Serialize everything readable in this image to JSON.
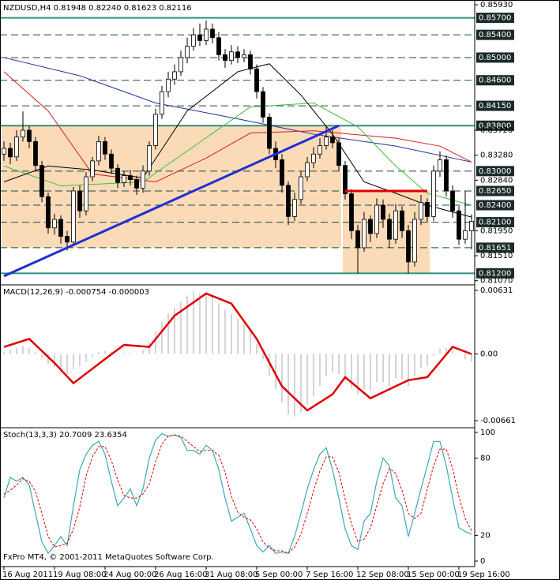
{
  "chart_data": [
    {
      "type": "candlestick",
      "title": "NZDUSD,H4 0.81948 0.82240 0.81623 0.82116",
      "categories": [
        "16 Aug 2011",
        null,
        null,
        null,
        null,
        null,
        null,
        null,
        "19 Aug 08:00",
        null,
        null,
        null,
        null,
        null,
        null,
        null,
        "24 Aug 00:00",
        null,
        null,
        null,
        null,
        null,
        null,
        null,
        "26 Aug 16:00",
        null,
        null,
        null,
        null,
        null,
        null,
        null,
        "31 Aug 08:00",
        null,
        null,
        null,
        null,
        null,
        null,
        null,
        "5 Sep 00:00",
        null,
        null,
        null,
        null,
        null,
        null,
        null,
        "7 Sep 16:00",
        null,
        null,
        null,
        null,
        null,
        null,
        null,
        "12 Sep 08:00",
        null,
        null,
        null,
        null,
        null,
        null,
        null,
        "15 Sep 00:00",
        null,
        null,
        null,
        null,
        null,
        null,
        null,
        "19 Sep 16:00",
        null,
        null
      ],
      "open": [
        0.833,
        0.834,
        0.8325,
        0.836,
        0.8372,
        0.8352,
        0.831,
        0.8255,
        0.82,
        0.8215,
        0.8185,
        0.8175,
        0.8265,
        0.823,
        0.829,
        0.8318,
        0.8352,
        0.833,
        0.8305,
        0.828,
        0.8292,
        0.8285,
        0.827,
        0.83,
        0.8345,
        0.84,
        0.844,
        0.8462,
        0.8475,
        0.85,
        0.852,
        0.854,
        0.853,
        0.855,
        0.8535,
        0.8505,
        0.8495,
        0.851,
        0.85,
        0.8505,
        0.848,
        0.844,
        0.8395,
        0.834,
        0.832,
        0.8275,
        0.822,
        0.825,
        0.829,
        0.8315,
        0.833,
        0.8345,
        0.836,
        0.835,
        0.831,
        0.826,
        0.8195,
        0.8165,
        0.8215,
        0.819,
        0.824,
        0.8215,
        0.818,
        0.823,
        0.8195,
        0.814,
        0.8215,
        0.8245,
        0.822,
        0.83,
        0.832,
        0.8265,
        0.823,
        0.818,
        0.81948
      ],
      "high": [
        0.8352,
        0.835,
        0.8372,
        0.8405,
        0.838,
        0.836,
        0.8318,
        0.8262,
        0.8225,
        0.8222,
        0.8195,
        0.8272,
        0.8275,
        0.8298,
        0.8325,
        0.8362,
        0.836,
        0.8338,
        0.8312,
        0.83,
        0.8302,
        0.8292,
        0.831,
        0.8352,
        0.841,
        0.845,
        0.8475,
        0.8488,
        0.8512,
        0.8535,
        0.8552,
        0.856,
        0.8565,
        0.856,
        0.8545,
        0.8515,
        0.8522,
        0.852,
        0.8515,
        0.8512,
        0.8488,
        0.8448,
        0.8402,
        0.8352,
        0.833,
        0.8282,
        0.8262,
        0.83,
        0.8325,
        0.8342,
        0.8358,
        0.8378,
        0.8372,
        0.8358,
        0.8318,
        0.8268,
        0.8205,
        0.8228,
        0.8222,
        0.8252,
        0.825,
        0.8225,
        0.8242,
        0.8238,
        0.8205,
        0.8228,
        0.8258,
        0.8252,
        0.831,
        0.8335,
        0.8328,
        0.8275,
        0.8238,
        0.8265,
        0.8224
      ],
      "low": [
        0.8318,
        0.8312,
        0.8318,
        0.8352,
        0.834,
        0.83,
        0.8245,
        0.819,
        0.8188,
        0.8172,
        0.816,
        0.8168,
        0.8218,
        0.8222,
        0.8282,
        0.831,
        0.832,
        0.8295,
        0.827,
        0.8272,
        0.8275,
        0.8258,
        0.8262,
        0.8292,
        0.8338,
        0.8392,
        0.843,
        0.8452,
        0.8468,
        0.849,
        0.8512,
        0.852,
        0.8522,
        0.8525,
        0.8495,
        0.8482,
        0.8488,
        0.849,
        0.8492,
        0.847,
        0.8428,
        0.8385,
        0.833,
        0.8305,
        0.8262,
        0.8205,
        0.8212,
        0.8242,
        0.8282,
        0.8305,
        0.8322,
        0.8338,
        0.834,
        0.83,
        0.825,
        0.818,
        0.812,
        0.8158,
        0.8175,
        0.8182,
        0.82,
        0.8165,
        0.8172,
        0.8182,
        0.812,
        0.8132,
        0.8205,
        0.821,
        0.8212,
        0.829,
        0.8255,
        0.8218,
        0.817,
        0.8172,
        0.81623
      ],
      "close": [
        0.834,
        0.8325,
        0.836,
        0.8372,
        0.8352,
        0.831,
        0.8255,
        0.82,
        0.8215,
        0.8185,
        0.8175,
        0.8265,
        0.823,
        0.829,
        0.8318,
        0.8352,
        0.833,
        0.8305,
        0.828,
        0.8292,
        0.8285,
        0.827,
        0.83,
        0.8345,
        0.84,
        0.844,
        0.8462,
        0.8475,
        0.85,
        0.852,
        0.854,
        0.853,
        0.855,
        0.8535,
        0.8505,
        0.8495,
        0.851,
        0.85,
        0.8505,
        0.848,
        0.844,
        0.8395,
        0.834,
        0.832,
        0.8275,
        0.822,
        0.825,
        0.829,
        0.8315,
        0.833,
        0.8345,
        0.836,
        0.835,
        0.831,
        0.826,
        0.8195,
        0.8165,
        0.8215,
        0.819,
        0.824,
        0.8215,
        0.818,
        0.823,
        0.8195,
        0.814,
        0.8215,
        0.8245,
        0.822,
        0.83,
        0.832,
        0.8265,
        0.823,
        0.818,
        0.8195,
        0.82116
      ],
      "up_color": "#ffffff",
      "down_color": "#000000",
      "ylim": [
        0.8101,
        0.86
      ],
      "yticks": [
        {
          "value": 0.8593,
          "label": "0.85930"
        },
        {
          "value": 0.8372,
          "label": "0.83720"
        },
        {
          "value": 0.8328,
          "label": "0.83280"
        },
        {
          "value": 0.8284,
          "label": "0.82840"
        },
        {
          "value": 0.8195,
          "label": "0.81950"
        },
        {
          "value": 0.8151,
          "label": "0.81510"
        },
        {
          "value": 0.8107,
          "label": "0.81070"
        }
      ],
      "grid": false,
      "levels": [
        {
          "value": 0.857,
          "label": "0.85700",
          "style": "solid",
          "color": "#2f8f80"
        },
        {
          "value": 0.854,
          "label": "0.85400",
          "style": "dashed",
          "color": "#1c4a48"
        },
        {
          "value": 0.85,
          "label": "0.85000",
          "style": "dashed",
          "color": "#1c4a48"
        },
        {
          "value": 0.846,
          "label": "0.84600",
          "style": "dashed",
          "color": "#1c4a48"
        },
        {
          "value": 0.8415,
          "label": "0.84150",
          "style": "dashed",
          "color": "#1c4a48"
        },
        {
          "value": 0.838,
          "label": "0.83800",
          "style": "solid",
          "color": "#2f8f80"
        },
        {
          "value": 0.83,
          "label": "0.83000",
          "style": "dashed",
          "color": "#1c4a48"
        },
        {
          "value": 0.8265,
          "label": "0.82650",
          "style": "dashed",
          "color": "#1c4a48"
        },
        {
          "value": 0.824,
          "label": "0.82400",
          "style": "dashed",
          "color": "#1c4a48"
        },
        {
          "value": 0.821,
          "label": "0.82100",
          "style": "dashed",
          "color": "#1c4a48"
        },
        {
          "value": 0.81651,
          "label": "0.81651",
          "style": "dashed",
          "color": "#1c4a48"
        },
        {
          "value": 0.812,
          "label": "0.81200",
          "style": "solid",
          "color": "#2f8f80"
        }
      ],
      "rectangles": [
        {
          "x": [
            0,
            53
          ],
          "y": [
            0.8165,
            0.838
          ],
          "color": "#fbdab8"
        },
        {
          "x": [
            54,
            67
          ],
          "y": [
            0.812,
            0.8265
          ],
          "color": "#fbdab8"
        }
      ],
      "lines": [
        {
          "color": "#2a2a9a",
          "x": [
            0,
            12,
            24,
            37,
            49,
            62,
            74
          ],
          "values": [
            0.85,
            0.8468,
            0.842,
            0.8392,
            0.8365,
            0.8344,
            0.8316
          ]
        },
        {
          "color": "#d02020",
          "x": [
            0,
            7,
            14,
            24,
            32,
            39,
            49,
            62,
            69,
            74
          ],
          "values": [
            0.8475,
            0.8406,
            0.8295,
            0.8281,
            0.8323,
            0.8367,
            0.8371,
            0.8358,
            0.8344,
            0.8316
          ]
        },
        {
          "color": "#40c040",
          "x": [
            0,
            9,
            22,
            31,
            39,
            49,
            56,
            62,
            67,
            74
          ],
          "values": [
            0.8309,
            0.8274,
            0.8281,
            0.8351,
            0.8413,
            0.842,
            0.8378,
            0.8309,
            0.8261,
            0.824
          ]
        },
        {
          "color": "#000000",
          "x": [
            0,
            7,
            14,
            22,
            29,
            37,
            42,
            47,
            52,
            57,
            62,
            67,
            74
          ],
          "values": [
            0.8281,
            0.8309,
            0.8302,
            0.8288,
            0.8406,
            0.8475,
            0.8489,
            0.8434,
            0.8365,
            0.8281,
            0.8261,
            0.824,
            0.8219
          ]
        }
      ],
      "drawings": [
        {
          "color": "#1f2fd0",
          "x": [
            0,
            53
          ],
          "values": [
            0.8115,
            0.838
          ]
        },
        {
          "color": "#e00000",
          "x": [
            54,
            67
          ],
          "values": [
            0.8265,
            0.8265
          ]
        }
      ]
    },
    {
      "type": "macd",
      "title": "MACD(12,26,9) -0.000754 -0.000003",
      "ylim": [
        -0.00716,
        0.00678
      ],
      "yticks": [
        0.00631,
        {
          "value": 0,
          "label": "0.00"
        },
        -0.00661
      ],
      "histogram": {
        "color": "#a8a8a8",
        "values": [
          0.0002,
          0.0004,
          0.0006,
          0.0008,
          0.0006,
          0.0002,
          -0.0004,
          -0.001,
          -0.0013,
          -0.0018,
          -0.002,
          -0.0015,
          -0.0012,
          -0.0008,
          -0.0003,
          0.0002,
          0.0003,
          0.0002,
          0.0,
          0.0001,
          0.0001,
          0.0,
          0.0004,
          0.0012,
          0.0022,
          0.0032,
          0.004,
          0.0046,
          0.0052,
          0.0058,
          0.0062,
          0.006,
          0.0061,
          0.0058,
          0.005,
          0.0044,
          0.004,
          0.0035,
          0.003,
          0.0022,
          0.001,
          -0.0005,
          -0.0022,
          -0.0035,
          -0.0048,
          -0.006,
          -0.0062,
          -0.0058,
          -0.005,
          -0.0042,
          -0.0032,
          -0.0022,
          -0.0018,
          -0.002,
          -0.0026,
          -0.0034,
          -0.004,
          -0.0035,
          -0.0036,
          -0.0028,
          -0.0028,
          -0.0032,
          -0.0024,
          -0.0025,
          -0.0032,
          -0.0022,
          -0.0014,
          -0.0012,
          -0.0002,
          0.0005,
          0.0006,
          0.0004,
          0.0,
          -0.0005,
          -0.000754
        ]
      },
      "signal": {
        "color": "#e00000",
        "x": [
          0,
          4,
          8,
          11,
          16,
          19,
          23,
          27,
          32,
          36,
          40,
          44,
          48,
          52,
          54,
          58,
          62,
          64,
          67,
          71,
          74
        ],
        "values": [
          0.0007,
          0.0015,
          -0.0009,
          -0.0029,
          -0.0005,
          0.0009,
          0.0007,
          0.0038,
          0.006,
          0.005,
          0.0015,
          -0.0032,
          -0.0056,
          -0.004,
          -0.0023,
          -0.0044,
          -0.0032,
          -0.0026,
          -0.0023,
          0.0007,
          -3e-06
        ]
      }
    },
    {
      "type": "stochastic",
      "title": "Stoch(13,3,3) 20.7009 23.6354",
      "footer": "FxPro MT4, © 2001-2011 MetaQuotes Software Corp.",
      "ylim": [
        -4.3,
        103
      ],
      "yticks": [
        100,
        80,
        20,
        0
      ],
      "main": {
        "color": "#3aa8b8",
        "values": [
          49,
          65,
          62,
          65,
          59,
          37,
          15,
          6,
          12,
          19,
          12,
          43,
          71,
          83,
          90,
          93,
          83,
          62,
          43,
          49,
          56,
          43,
          56,
          80,
          94,
          99,
          97,
          98,
          96,
          86,
          86,
          83,
          90,
          86,
          71,
          49,
          31,
          34,
          37,
          25,
          12,
          7,
          12,
          6,
          7,
          6,
          19,
          37,
          56,
          71,
          83,
          88,
          71,
          49,
          25,
          12,
          9,
          31,
          37,
          62,
          80,
          74,
          49,
          43,
          19,
          37,
          56,
          74,
          93,
          93,
          74,
          49,
          26,
          23,
          20.7009
        ]
      },
      "signal": {
        "color": "#e00000",
        "values": [
          52,
          55,
          59,
          64,
          62,
          54,
          37,
          19,
          11,
          12,
          14,
          25,
          42,
          66,
          81,
          89,
          89,
          78,
          63,
          51,
          49,
          49,
          52,
          60,
          77,
          91,
          97,
          98,
          97,
          93,
          89,
          85,
          86,
          86,
          82,
          69,
          50,
          38,
          34,
          32,
          25,
          15,
          10,
          8,
          8,
          6,
          11,
          21,
          37,
          55,
          70,
          81,
          81,
          69,
          48,
          29,
          15,
          17,
          26,
          43,
          60,
          72,
          68,
          55,
          37,
          33,
          37,
          56,
          74,
          87,
          87,
          72,
          50,
          33,
          23.6354
        ]
      }
    }
  ]
}
